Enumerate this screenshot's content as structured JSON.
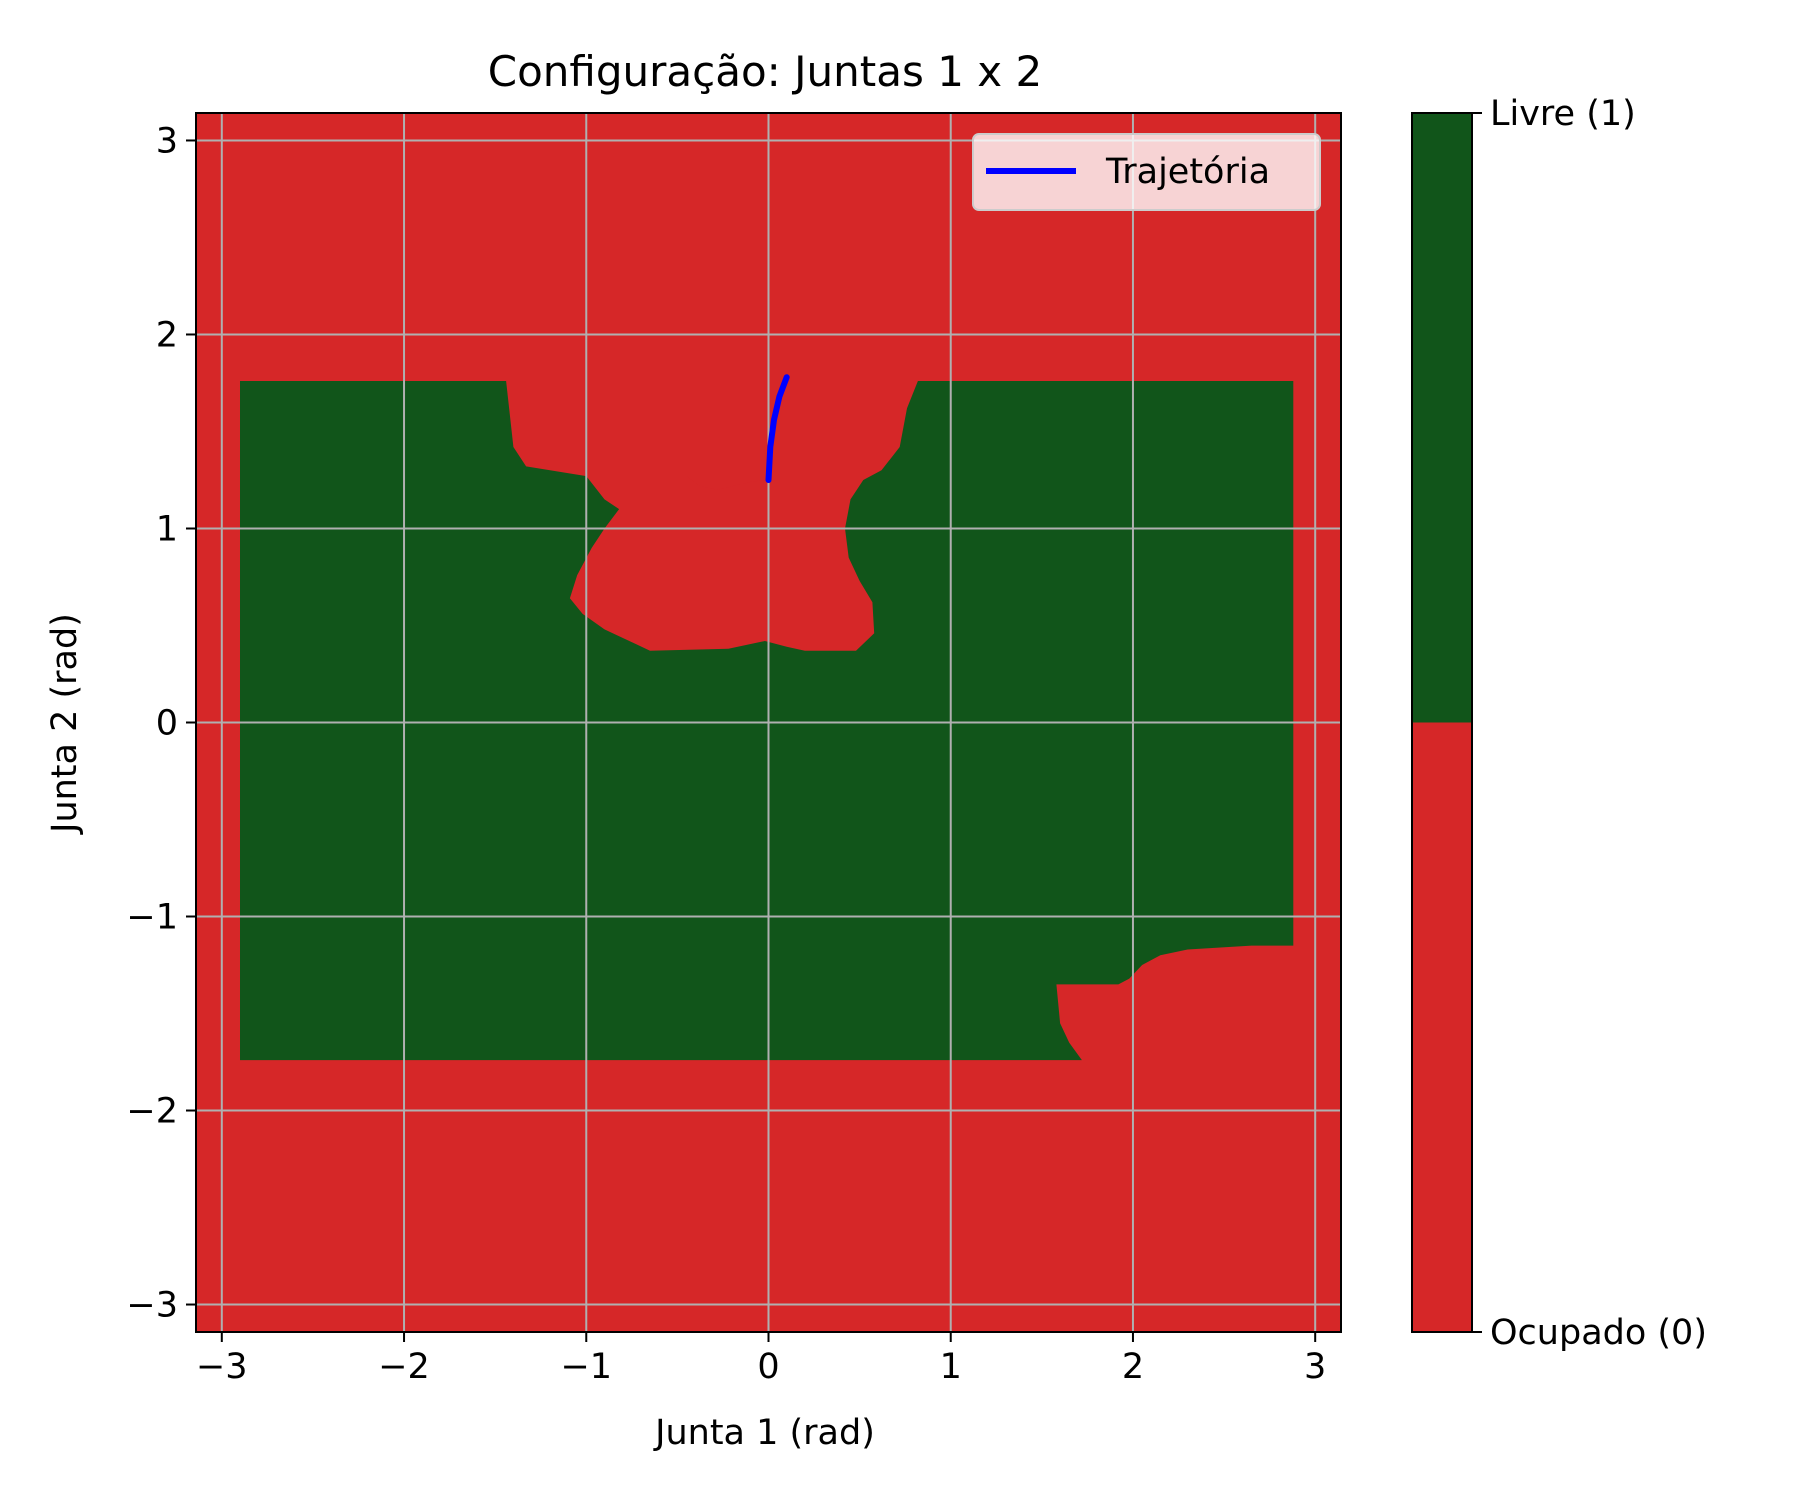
{
  "chart_data": {
    "type": "heatmap",
    "title": "Configuração: Juntas 1 x 2",
    "xlabel": "Junta 1 (rad)",
    "ylabel": "Junta 2 (rad)",
    "xlim": [
      -3.1416,
      3.1416
    ],
    "ylim": [
      -3.1416,
      3.1416
    ],
    "x_ticks": [
      -3,
      -2,
      -1,
      0,
      1,
      2,
      3
    ],
    "y_ticks": [
      -3,
      -2,
      -1,
      0,
      1,
      2,
      3
    ],
    "x_tick_labels": [
      "−3",
      "−2",
      "−1",
      "0",
      "1",
      "2",
      "3"
    ],
    "y_tick_labels": [
      "−3",
      "−2",
      "−1",
      "0",
      "1",
      "2",
      "3"
    ],
    "grid": true,
    "colors": {
      "occupied": "#d62728",
      "free": "#11551a",
      "trajectory": "#0000ff",
      "grid": "#b0b0b0"
    },
    "free_regions": [
      [
        [
          -2.9,
          1.76
        ],
        [
          -1.44,
          1.76
        ],
        [
          -1.4,
          1.42
        ],
        [
          -1.33,
          1.32
        ],
        [
          -1.0,
          1.27
        ],
        [
          -0.9,
          1.15
        ],
        [
          -0.82,
          1.1
        ],
        [
          -0.9,
          1.0
        ],
        [
          -0.97,
          0.9
        ],
        [
          -1.05,
          0.76
        ],
        [
          -1.09,
          0.64
        ],
        [
          -1.02,
          0.56
        ],
        [
          -0.9,
          0.48
        ],
        [
          -0.65,
          0.37
        ],
        [
          -0.22,
          0.38
        ],
        [
          -0.02,
          0.42
        ],
        [
          0.1,
          0.39
        ],
        [
          0.2,
          0.37
        ],
        [
          0.48,
          0.37
        ],
        [
          0.58,
          0.46
        ],
        [
          0.57,
          0.62
        ],
        [
          0.5,
          0.73
        ],
        [
          0.44,
          0.85
        ],
        [
          0.42,
          1.0
        ],
        [
          0.45,
          1.15
        ],
        [
          0.52,
          1.25
        ],
        [
          0.62,
          1.3
        ],
        [
          0.72,
          1.42
        ],
        [
          0.76,
          1.62
        ],
        [
          0.82,
          1.76
        ],
        [
          2.88,
          1.76
        ],
        [
          2.88,
          -1.15
        ],
        [
          2.65,
          -1.15
        ],
        [
          2.3,
          -1.17
        ],
        [
          2.15,
          -1.2
        ],
        [
          2.05,
          -1.25
        ],
        [
          1.98,
          -1.32
        ],
        [
          1.92,
          -1.35
        ],
        [
          1.58,
          -1.35
        ],
        [
          1.6,
          -1.55
        ],
        [
          1.65,
          -1.65
        ],
        [
          1.72,
          -1.74
        ],
        [
          -2.9,
          -1.74
        ]
      ]
    ],
    "occupied_islands": [
      [
        [
          -0.5,
          1.76
        ],
        [
          -0.45,
          1.76
        ],
        [
          -0.45,
          1.27
        ],
        [
          -0.38,
          1.22
        ],
        [
          -0.28,
          1.2
        ],
        [
          -0.1,
          1.24
        ],
        [
          -0.02,
          1.25
        ],
        [
          -0.02,
          1.76
        ],
        [
          -0.5,
          1.76
        ]
      ]
    ],
    "trajectory": {
      "name": "Trajetória",
      "x": [
        0.0,
        0.01,
        0.03,
        0.06,
        0.1
      ],
      "y": [
        1.25,
        1.42,
        1.56,
        1.68,
        1.78
      ]
    },
    "legend": {
      "placement": "top-right",
      "entries": [
        "Trajetória"
      ]
    },
    "colorbar": {
      "range": [
        0,
        1
      ],
      "labels": [
        "Ocupado (0)",
        "Livre (1)"
      ]
    }
  }
}
